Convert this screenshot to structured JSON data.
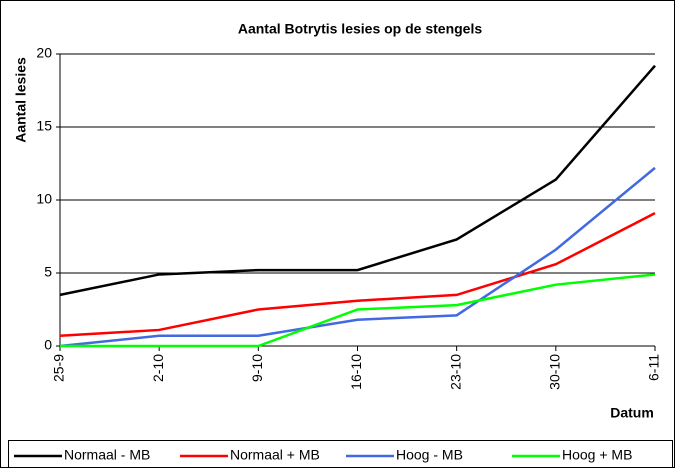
{
  "chart_data": {
    "type": "line",
    "title": "Aantal Botrytis lesies op de stengels",
    "y_label": "Aantal lesies",
    "x_label": "Datum",
    "categories": [
      "25-9",
      "2-10",
      "9-10",
      "16-10",
      "23-10",
      "30-10",
      "6-11"
    ],
    "series": [
      {
        "name": "Normaal - MB",
        "color": "#000000",
        "values": [
          3.5,
          4.9,
          5.2,
          5.2,
          7.3,
          11.4,
          19.2
        ]
      },
      {
        "name": "Normaal + MB",
        "color": "#ff0000",
        "values": [
          0.7,
          1.1,
          2.5,
          3.1,
          3.5,
          5.6,
          9.1
        ]
      },
      {
        "name": "Hoog - MB",
        "color": "#4169e1",
        "values": [
          0,
          0.7,
          0.7,
          1.8,
          2.1,
          6.6,
          12.2
        ]
      },
      {
        "name": "Hoog + MB",
        "color": "#00ff00",
        "values": [
          0,
          0,
          0,
          2.5,
          2.8,
          4.2,
          4.9
        ]
      }
    ],
    "ylim": [
      0,
      20
    ],
    "yticks": [
      0,
      5,
      10,
      15,
      20
    ],
    "grid": true,
    "legend": "bottom"
  }
}
